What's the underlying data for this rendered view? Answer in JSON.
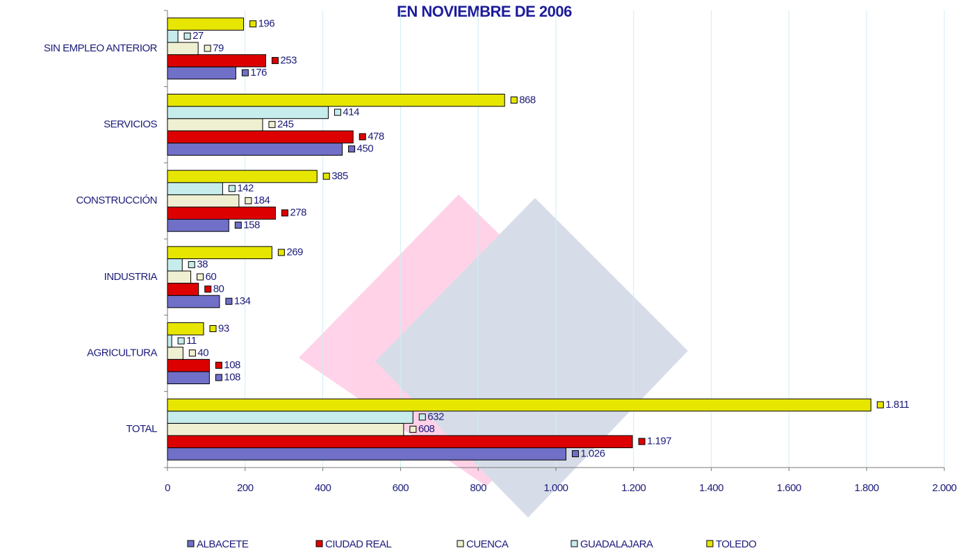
{
  "chart_data": {
    "type": "bar",
    "orientation": "horizontal",
    "title": "EN NOVIEMBRE DE 2006",
    "categories": [
      "SIN EMPLEO ANTERIOR",
      "SERVICIOS",
      "CONSTRUCCIÓN",
      "INDUSTRIA",
      "AGRICULTURA",
      "TOTAL"
    ],
    "series": [
      {
        "name": "ALBACETE",
        "color": "#7070c8",
        "values": [
          176,
          450,
          158,
          134,
          108,
          1026
        ],
        "value_labels": [
          "176",
          "450",
          "158",
          "134",
          "108",
          "1.026"
        ]
      },
      {
        "name": "CIUDAD REAL",
        "color": "#dd0000",
        "values": [
          253,
          478,
          278,
          80,
          108,
          1197
        ],
        "value_labels": [
          "253",
          "478",
          "278",
          "80",
          "108",
          "1.197"
        ]
      },
      {
        "name": "CUENCA",
        "color": "#efefd2",
        "values": [
          79,
          245,
          184,
          60,
          40,
          608
        ],
        "value_labels": [
          "79",
          "245",
          "184",
          "60",
          "40",
          "608"
        ]
      },
      {
        "name": "GUADALAJARA",
        "color": "#c6ecec",
        "values": [
          27,
          414,
          142,
          38,
          11,
          632
        ],
        "value_labels": [
          "27",
          "414",
          "142",
          "38",
          "11",
          "632"
        ]
      },
      {
        "name": "TOLEDO",
        "color": "#e6e600",
        "values": [
          196,
          868,
          385,
          269,
          93,
          1811
        ],
        "value_labels": [
          "196",
          "868",
          "385",
          "269",
          "93",
          "1.811"
        ]
      }
    ],
    "xlim": [
      0,
      2000
    ],
    "xticks": [
      0,
      200,
      400,
      600,
      800,
      {
        "value": 1000,
        "label": "1.000"
      },
      {
        "value": 1200,
        "label": "1.200"
      },
      {
        "value": 1400,
        "label": "1.400"
      },
      {
        "value": 1600,
        "label": "1.600"
      },
      {
        "value": 1800,
        "label": "1.800"
      },
      {
        "value": 2000,
        "label": "2.000"
      }
    ],
    "grid": true,
    "legend": "bottom"
  }
}
